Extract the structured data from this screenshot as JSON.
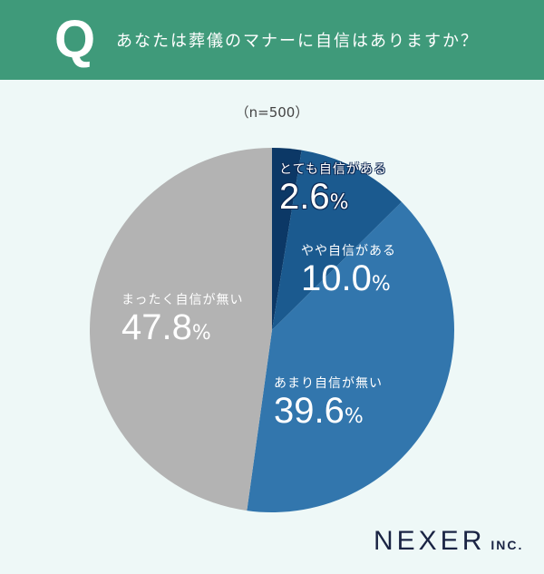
{
  "header": {
    "q_letter": "Q",
    "question": "あなたは葬儀のマナーに自信はありますか？",
    "bg_color": "#3f9a7a"
  },
  "sample": "（n=500）",
  "chart_data": {
    "type": "pie",
    "title": "あなたは葬儀のマナーに自信はありますか？",
    "n": 500,
    "categories": [
      "とても自信がある",
      "やや自信がある",
      "あまり自信が無い",
      "まったく自信が無い"
    ],
    "values": [
      2.6,
      10.0,
      39.6,
      47.8
    ],
    "unit": "%",
    "colors": [
      "#0c3866",
      "#1b5a8f",
      "#3276ad",
      "#b3b3b3"
    ],
    "start_angle": "12 o'clock, clockwise"
  },
  "labels": [
    {
      "name": "とても自信がある",
      "value": "2.6",
      "pct": "%"
    },
    {
      "name": "やや自信がある",
      "value": "10.0",
      "pct": "%"
    },
    {
      "name": "あまり自信が無い",
      "value": "39.6",
      "pct": "%"
    },
    {
      "name": "まったく自信が無い",
      "value": "47.8",
      "pct": "%"
    }
  ],
  "logo": {
    "main": "NEXER",
    "inc": "INC."
  }
}
